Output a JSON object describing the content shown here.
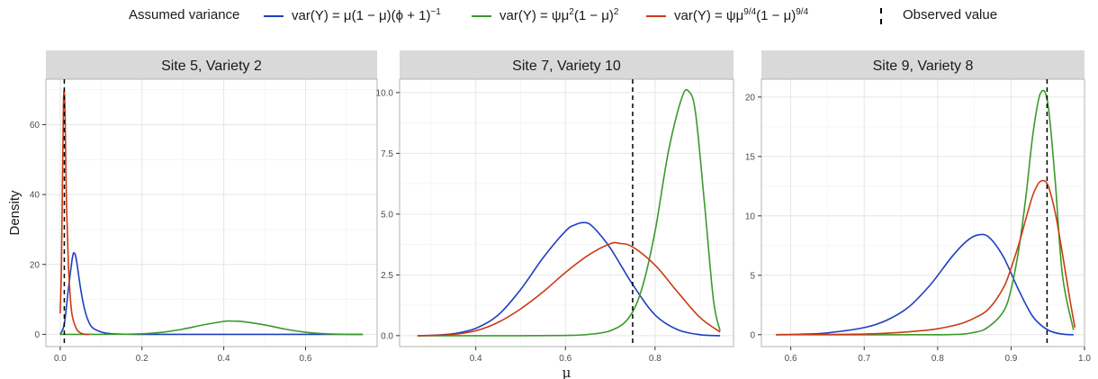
{
  "legend": {
    "title": "Assumed variance",
    "entries": [
      {
        "label": "var(Y) = μ(1 − μ)(ϕ + 1)",
        "sup": "−1",
        "color": "#1f3fbf"
      },
      {
        "label_a": "var(Y) = ψμ",
        "sup_a": "2",
        "label_b": "(1 − μ)",
        "sup_b": "2",
        "color": "#3a9a2a"
      },
      {
        "label_a": "var(Y) = ψμ",
        "sup_a": "9/4",
        "label_b": "(1 − μ)",
        "sup_b": "9/4",
        "color": "#cc3a12"
      }
    ],
    "observed_label": "Observed value"
  },
  "chart_data": [
    {
      "type": "line",
      "title": "Site 5, Variety 2",
      "ylabel": "Density",
      "xlim": [
        -0.035,
        0.775
      ],
      "ylim": [
        -3.5,
        73
      ],
      "xticks": [
        0.0,
        0.2,
        0.4,
        0.6
      ],
      "xtick_labels": [
        "0.0",
        "0.2",
        "0.4",
        "0.6"
      ],
      "yticks": [
        0,
        20,
        40,
        60
      ],
      "ytick_labels": [
        "0",
        "20",
        "40",
        "60"
      ],
      "observed_value": 0.01,
      "series": [
        {
          "color": "#1f3fbf",
          "x": [
            0.0,
            0.01,
            0.02,
            0.03,
            0.035,
            0.04,
            0.05,
            0.06,
            0.07,
            0.08,
            0.1,
            0.12,
            0.15,
            0.2,
            0.3,
            0.5,
            0.74
          ],
          "y": [
            0,
            3,
            13,
            22,
            23.2,
            21,
            13,
            7,
            3.5,
            1.8,
            0.7,
            0.25,
            0.05,
            0,
            0,
            0,
            0
          ]
        },
        {
          "color": "#3a9a2a",
          "x": [
            0.0,
            0.05,
            0.1,
            0.15,
            0.2,
            0.25,
            0.3,
            0.35,
            0.4,
            0.42,
            0.45,
            0.5,
            0.55,
            0.6,
            0.65,
            0.7,
            0.74
          ],
          "y": [
            0,
            0,
            0,
            0.02,
            0.15,
            0.6,
            1.5,
            2.7,
            3.7,
            3.8,
            3.6,
            2.7,
            1.5,
            0.6,
            0.15,
            0.02,
            0
          ]
        },
        {
          "color": "#cc3a12",
          "x": [
            0.0,
            0.003,
            0.006,
            0.008,
            0.01,
            0.012,
            0.015,
            0.02,
            0.025,
            0.03,
            0.04,
            0.05,
            0.06,
            0.07
          ],
          "y": [
            6,
            20,
            48,
            66,
            69.5,
            62,
            40,
            20,
            10,
            5,
            1.5,
            0.4,
            0.05,
            0
          ]
        }
      ]
    },
    {
      "type": "line",
      "title": "Site 7, Variety 10",
      "xlabel": "μ",
      "xlim": [
        0.23,
        0.975
      ],
      "ylim": [
        -0.45,
        10.55
      ],
      "xticks": [
        0.4,
        0.6,
        0.8
      ],
      "xtick_labels": [
        "0.4",
        "0.6",
        "0.8"
      ],
      "yticks": [
        0.0,
        2.5,
        5.0,
        7.5,
        10.0
      ],
      "ytick_labels": [
        "0.0",
        "2.5",
        "5.0",
        "7.5",
        "10.0"
      ],
      "observed_value": 0.75,
      "series": [
        {
          "color": "#1f3fbf",
          "x": [
            0.27,
            0.3,
            0.35,
            0.4,
            0.45,
            0.5,
            0.55,
            0.6,
            0.62,
            0.64,
            0.66,
            0.7,
            0.75,
            0.8,
            0.85,
            0.9,
            0.945
          ],
          "y": [
            0,
            0.01,
            0.08,
            0.3,
            0.85,
            1.9,
            3.2,
            4.3,
            4.55,
            4.65,
            4.5,
            3.6,
            2.1,
            0.85,
            0.25,
            0.04,
            0
          ]
        },
        {
          "color": "#3a9a2a",
          "x": [
            0.27,
            0.5,
            0.6,
            0.65,
            0.7,
            0.74,
            0.77,
            0.8,
            0.83,
            0.86,
            0.875,
            0.89,
            0.91,
            0.93,
            0.945
          ],
          "y": [
            0,
            0,
            0.01,
            0.05,
            0.2,
            0.7,
            1.9,
            4.3,
            7.6,
            9.8,
            10.05,
            9.2,
            5.5,
            1.5,
            0.2
          ]
        },
        {
          "color": "#cc3a12",
          "x": [
            0.27,
            0.3,
            0.35,
            0.4,
            0.45,
            0.5,
            0.55,
            0.6,
            0.65,
            0.7,
            0.72,
            0.75,
            0.8,
            0.85,
            0.9,
            0.945
          ],
          "y": [
            0,
            0.01,
            0.05,
            0.2,
            0.55,
            1.1,
            1.8,
            2.6,
            3.3,
            3.78,
            3.8,
            3.65,
            2.9,
            1.8,
            0.75,
            0.15
          ]
        }
      ]
    },
    {
      "type": "line",
      "title": "Site 9, Variety 8",
      "xlim": [
        0.56,
        1.0
      ],
      "ylim": [
        -1.0,
        21.5
      ],
      "xticks": [
        0.6,
        0.7,
        0.8,
        0.9,
        1.0
      ],
      "xtick_labels": [
        "0.6",
        "0.7",
        "0.8",
        "0.9",
        "1.0"
      ],
      "yticks": [
        0,
        5,
        10,
        15,
        20
      ],
      "ytick_labels": [
        "0",
        "5",
        "10",
        "15",
        "20"
      ],
      "observed_value": 0.949,
      "series": [
        {
          "color": "#1f3fbf",
          "x": [
            0.58,
            0.62,
            0.65,
            0.7,
            0.73,
            0.76,
            0.79,
            0.82,
            0.84,
            0.855,
            0.87,
            0.89,
            0.91,
            0.93,
            0.95,
            0.97,
            0.985
          ],
          "y": [
            0,
            0.05,
            0.15,
            0.6,
            1.2,
            2.3,
            4.2,
            6.6,
            7.9,
            8.4,
            8.2,
            6.5,
            3.8,
            1.5,
            0.4,
            0.05,
            0
          ]
        },
        {
          "color": "#3a9a2a",
          "x": [
            0.58,
            0.8,
            0.85,
            0.87,
            0.89,
            0.9,
            0.91,
            0.92,
            0.93,
            0.94,
            0.95,
            0.96,
            0.97,
            0.985
          ],
          "y": [
            0,
            0,
            0.2,
            0.7,
            2,
            3.8,
            7,
            11.5,
            17,
            20.3,
            19.5,
            13,
            5,
            0.4
          ]
        },
        {
          "color": "#cc3a12",
          "x": [
            0.58,
            0.7,
            0.75,
            0.78,
            0.8,
            0.83,
            0.85,
            0.87,
            0.89,
            0.9,
            0.91,
            0.92,
            0.93,
            0.94,
            0.95,
            0.96,
            0.97,
            0.98,
            0.987
          ],
          "y": [
            0,
            0.05,
            0.2,
            0.35,
            0.5,
            0.9,
            1.4,
            2.2,
            4,
            5.6,
            7.5,
            9.7,
            11.8,
            12.9,
            12.6,
            10.3,
            6.8,
            3,
            0.6
          ]
        }
      ]
    }
  ]
}
